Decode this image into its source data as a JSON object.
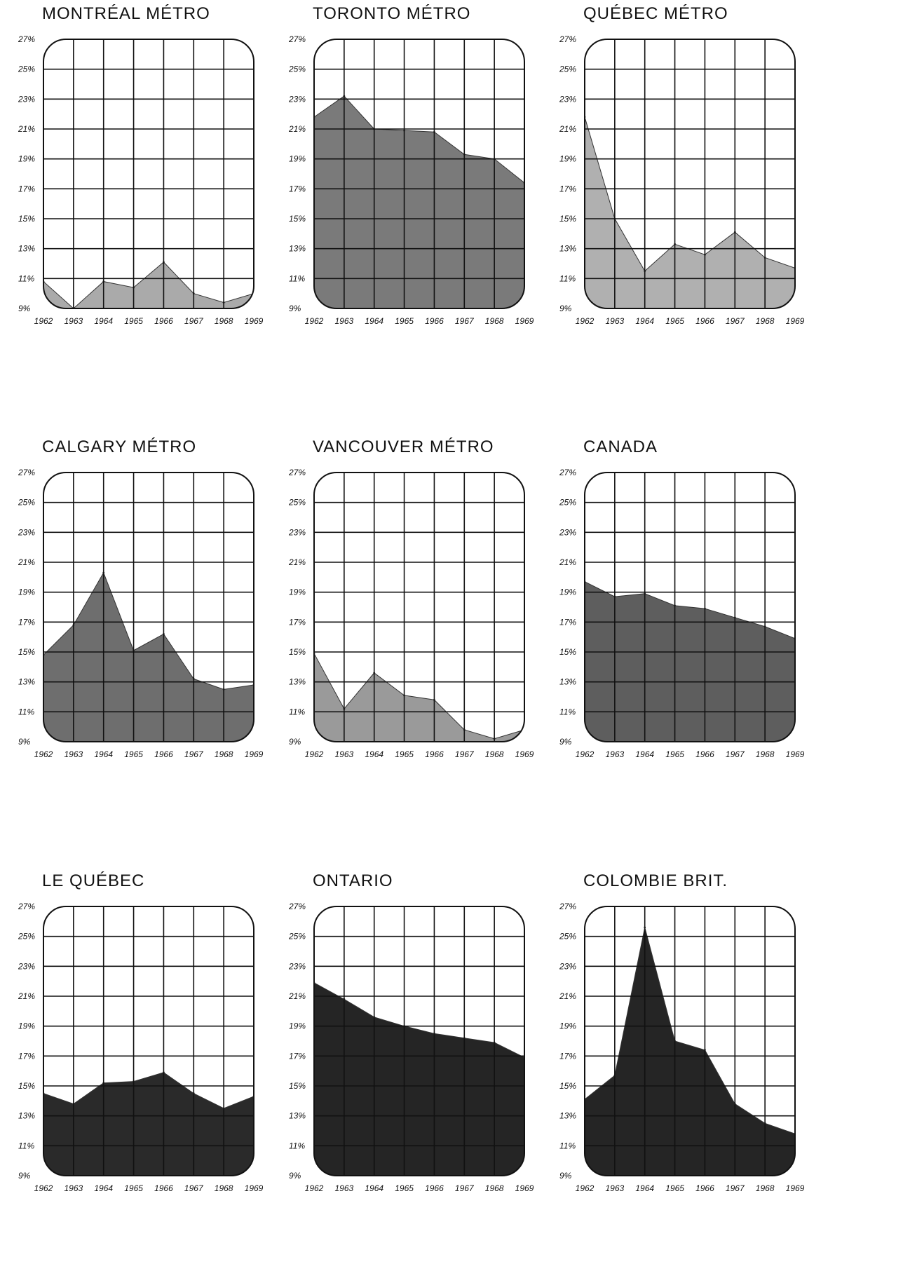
{
  "chart_data": [
    {
      "type": "area",
      "title": "MONTRÉAL MÉTRO",
      "x": [
        "1962",
        "1963",
        "1964",
        "1965",
        "1966",
        "1967",
        "1968",
        "1969"
      ],
      "values": [
        10.8,
        9.0,
        10.8,
        10.4,
        12.1,
        10.0,
        9.4,
        10.0
      ],
      "ylim": [
        9,
        27
      ],
      "yticks": [
        "27%",
        "25%",
        "23%",
        "21%",
        "19%",
        "17%",
        "15%",
        "13%",
        "11%",
        "9%"
      ],
      "fill": "#aaaaaa"
    },
    {
      "type": "area",
      "title": "TORONTO MÉTRO",
      "x": [
        "1962",
        "1963",
        "1964",
        "1965",
        "1966",
        "1967",
        "1968",
        "1969"
      ],
      "values": [
        21.8,
        23.2,
        21.0,
        20.9,
        20.8,
        19.3,
        19.0,
        17.4
      ],
      "ylim": [
        9,
        27
      ],
      "yticks": [
        "27%",
        "25%",
        "23%",
        "21%",
        "19%",
        "17%",
        "15%",
        "13%",
        "11%",
        "9%"
      ],
      "fill": "#7a7a7a"
    },
    {
      "type": "area",
      "title": "QUÉBEC MÉTRO",
      "x": [
        "1962",
        "1963",
        "1964",
        "1965",
        "1966",
        "1967",
        "1968",
        "1969"
      ],
      "values": [
        21.8,
        15.0,
        11.5,
        13.3,
        12.6,
        14.1,
        12.4,
        11.7
      ],
      "ylim": [
        9,
        27
      ],
      "yticks": [
        "27%",
        "25%",
        "23%",
        "21%",
        "19%",
        "17%",
        "15%",
        "13%",
        "11%",
        "9%"
      ],
      "fill": "#b0b0b0"
    },
    {
      "type": "area",
      "title": "CALGARY MÉTRO",
      "x": [
        "1962",
        "1963",
        "1964",
        "1965",
        "1966",
        "1967",
        "1968",
        "1969"
      ],
      "values": [
        14.8,
        16.8,
        20.3,
        15.1,
        16.2,
        13.2,
        12.5,
        12.8
      ],
      "ylim": [
        9,
        27
      ],
      "yticks": [
        "27%",
        "25%",
        "23%",
        "21%",
        "19%",
        "17%",
        "15%",
        "13%",
        "11%",
        "9%"
      ],
      "fill": "#6e6e6e"
    },
    {
      "type": "area",
      "title": "VANCOUVER MÉTRO",
      "x": [
        "1962",
        "1963",
        "1964",
        "1965",
        "1966",
        "1967",
        "1968",
        "1969"
      ],
      "values": [
        14.9,
        11.2,
        13.6,
        12.1,
        11.8,
        9.8,
        9.2,
        9.8
      ],
      "ylim": [
        9,
        27
      ],
      "yticks": [
        "27%",
        "25%",
        "23%",
        "21%",
        "19%",
        "17%",
        "15%",
        "13%",
        "11%",
        "9%"
      ],
      "fill": "#9a9a9a"
    },
    {
      "type": "area",
      "title": "CANADA",
      "x": [
        "1962",
        "1963",
        "1964",
        "1965",
        "1966",
        "1967",
        "1968",
        "1969"
      ],
      "values": [
        19.7,
        18.7,
        18.9,
        18.1,
        17.9,
        17.3,
        16.7,
        15.9
      ],
      "ylim": [
        9,
        27
      ],
      "yticks": [
        "27%",
        "25%",
        "23%",
        "21%",
        "19%",
        "17%",
        "15%",
        "13%",
        "11%",
        "9%"
      ],
      "fill": "#5e5e5e"
    },
    {
      "type": "area",
      "title": "LE QUÉBEC",
      "x": [
        "1962",
        "1963",
        "1964",
        "1965",
        "1966",
        "1967",
        "1968",
        "1969"
      ],
      "values": [
        14.5,
        13.8,
        15.2,
        15.3,
        15.9,
        14.5,
        13.5,
        14.3
      ],
      "ylim": [
        9,
        27
      ],
      "yticks": [
        "27%",
        "25%",
        "23%",
        "21%",
        "19%",
        "17%",
        "15%",
        "13%",
        "11%",
        "9%"
      ],
      "fill": "#2a2a2a"
    },
    {
      "type": "area",
      "title": "ONTARIO",
      "x": [
        "1962",
        "1963",
        "1964",
        "1965",
        "1966",
        "1967",
        "1968",
        "1969"
      ],
      "values": [
        21.9,
        20.8,
        19.6,
        19.0,
        18.5,
        18.2,
        17.9,
        16.9
      ],
      "ylim": [
        9,
        27
      ],
      "yticks": [
        "27%",
        "25%",
        "23%",
        "21%",
        "19%",
        "17%",
        "15%",
        "13%",
        "11%",
        "9%"
      ],
      "fill": "#252525"
    },
    {
      "type": "area",
      "title": "COLOMBIE BRIT.",
      "x": [
        "1962",
        "1963",
        "1964",
        "1965",
        "1966",
        "1967",
        "1968",
        "1969"
      ],
      "values": [
        14.1,
        15.7,
        25.6,
        18.0,
        17.4,
        13.8,
        12.5,
        11.8
      ],
      "ylim": [
        9,
        27
      ],
      "yticks": [
        "27%",
        "25%",
        "23%",
        "21%",
        "19%",
        "17%",
        "15%",
        "13%",
        "11%",
        "9%"
      ],
      "fill": "#252525"
    }
  ]
}
